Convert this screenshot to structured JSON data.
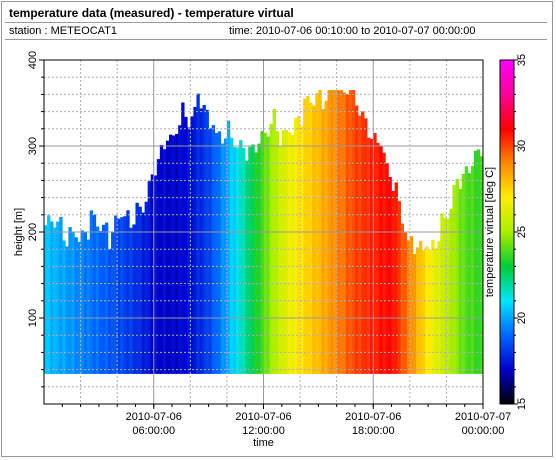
{
  "header": {
    "title": "temperature data (measured) - temperature virtual",
    "station_label": "station : METEOCAT1",
    "time_label": "time: 2010-07-06 00:10:00 to 2010-07-07 00:00:00"
  },
  "chart_data": {
    "type": "heatmap",
    "title": "temperature data (measured) - temperature virtual",
    "xlabel": "time",
    "ylabel": "height [m]",
    "colorbar_label": "temperature virtual [deg C]",
    "x_start_hours": 0.0,
    "x_end_hours": 24.0,
    "time_step_minutes": 10,
    "xlim_hours": [
      0,
      24
    ],
    "ylim": [
      0,
      400
    ],
    "x_ticks": [
      {
        "hours": 6,
        "line1": "2010-07-06",
        "line2": "06:00:00"
      },
      {
        "hours": 12,
        "line1": "2010-07-06",
        "line2": "12:00:00"
      },
      {
        "hours": 18,
        "line1": "2010-07-06",
        "line2": "18:00:00"
      },
      {
        "hours": 24,
        "line1": "2010-07-07",
        "line2": "00:00:00"
      }
    ],
    "y_ticks": [
      100,
      200,
      300,
      400
    ],
    "colorbar": {
      "min": 15,
      "max": 35,
      "ticks": [
        15,
        20,
        25,
        30,
        35
      ],
      "colors": [
        "#000000",
        "#0000cc",
        "#0066ff",
        "#00e5ff",
        "#00cc33",
        "#aaee00",
        "#ffee00",
        "#ff8800",
        "#ff0000",
        "#ff0099",
        "#ff00ff"
      ]
    },
    "data_bottom_height_m": 35,
    "top_height_knots": [
      {
        "t": 0.0,
        "h": 205
      },
      {
        "t": 0.5,
        "h": 210
      },
      {
        "t": 1.0,
        "h": 195
      },
      {
        "t": 1.5,
        "h": 205
      },
      {
        "t": 2.0,
        "h": 190
      },
      {
        "t": 2.5,
        "h": 205
      },
      {
        "t": 3.0,
        "h": 210
      },
      {
        "t": 3.5,
        "h": 200
      },
      {
        "t": 4.0,
        "h": 215
      },
      {
        "t": 4.5,
        "h": 210
      },
      {
        "t": 5.0,
        "h": 215
      },
      {
        "t": 5.5,
        "h": 240
      },
      {
        "t": 6.0,
        "h": 270
      },
      {
        "t": 6.5,
        "h": 290
      },
      {
        "t": 7.0,
        "h": 310
      },
      {
        "t": 7.5,
        "h": 340
      },
      {
        "t": 8.0,
        "h": 330
      },
      {
        "t": 8.5,
        "h": 350
      },
      {
        "t": 9.0,
        "h": 330
      },
      {
        "t": 9.5,
        "h": 320
      },
      {
        "t": 10.0,
        "h": 310
      },
      {
        "t": 10.5,
        "h": 300
      },
      {
        "t": 11.0,
        "h": 290
      },
      {
        "t": 11.5,
        "h": 305
      },
      {
        "t": 12.0,
        "h": 310
      },
      {
        "t": 12.5,
        "h": 320
      },
      {
        "t": 13.0,
        "h": 315
      },
      {
        "t": 13.5,
        "h": 320
      },
      {
        "t": 14.0,
        "h": 335
      },
      {
        "t": 14.5,
        "h": 345
      },
      {
        "t": 15.0,
        "h": 360
      },
      {
        "t": 15.5,
        "h": 365
      },
      {
        "t": 16.0,
        "h": 365
      },
      {
        "t": 16.5,
        "h": 365
      },
      {
        "t": 17.0,
        "h": 360
      },
      {
        "t": 17.5,
        "h": 335
      },
      {
        "t": 18.0,
        "h": 305
      },
      {
        "t": 18.5,
        "h": 290
      },
      {
        "t": 19.0,
        "h": 265
      },
      {
        "t": 19.5,
        "h": 230
      },
      {
        "t": 20.0,
        "h": 180
      },
      {
        "t": 20.5,
        "h": 175
      },
      {
        "t": 21.0,
        "h": 185
      },
      {
        "t": 21.5,
        "h": 195
      },
      {
        "t": 22.0,
        "h": 215
      },
      {
        "t": 22.5,
        "h": 245
      },
      {
        "t": 23.0,
        "h": 270
      },
      {
        "t": 23.5,
        "h": 290
      },
      {
        "t": 24.0,
        "h": 295
      }
    ],
    "temperature_knots": [
      {
        "t": 0.0,
        "v": 20.5
      },
      {
        "t": 1.0,
        "v": 20.0
      },
      {
        "t": 2.0,
        "v": 19.5
      },
      {
        "t": 3.0,
        "v": 19.0
      },
      {
        "t": 4.0,
        "v": 18.5
      },
      {
        "t": 5.0,
        "v": 18.0
      },
      {
        "t": 6.0,
        "v": 17.2
      },
      {
        "t": 7.0,
        "v": 17.0
      },
      {
        "t": 8.0,
        "v": 17.3
      },
      {
        "t": 9.0,
        "v": 18.3
      },
      {
        "t": 10.0,
        "v": 20.0
      },
      {
        "t": 11.0,
        "v": 22.0
      },
      {
        "t": 12.0,
        "v": 24.0
      },
      {
        "t": 13.0,
        "v": 26.0
      },
      {
        "t": 14.0,
        "v": 27.2
      },
      {
        "t": 15.0,
        "v": 28.0
      },
      {
        "t": 16.0,
        "v": 29.0
      },
      {
        "t": 17.0,
        "v": 30.0
      },
      {
        "t": 18.0,
        "v": 30.5
      },
      {
        "t": 19.0,
        "v": 31.0
      },
      {
        "t": 20.0,
        "v": 29.0
      },
      {
        "t": 21.0,
        "v": 27.0
      },
      {
        "t": 22.0,
        "v": 25.5
      },
      {
        "t": 23.0,
        "v": 24.0
      },
      {
        "t": 24.0,
        "v": 23.5
      }
    ],
    "grid": true,
    "colorbar_position": "right"
  }
}
